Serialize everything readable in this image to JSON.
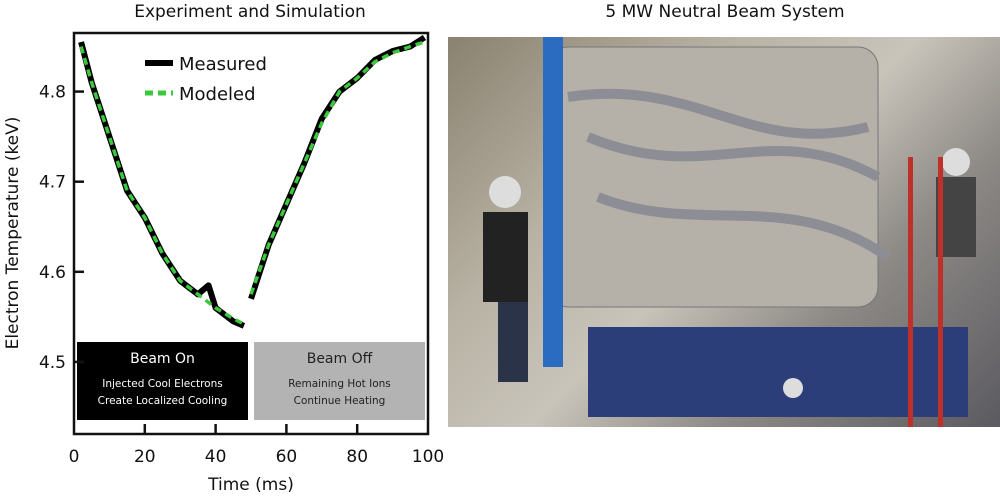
{
  "left_title": "Experiment and Simulation",
  "right_title": "5 MW Neutral Beam System",
  "chart_data": {
    "type": "line",
    "title": "Experiment and Simulation",
    "xlabel": "Time (ms)",
    "ylabel": "Electron Temperature (keV)",
    "xlim": [
      0,
      100
    ],
    "ylim": [
      4.42,
      4.865
    ],
    "xticks": [
      "0",
      "20",
      "40",
      "60",
      "80",
      "100"
    ],
    "yticks": [
      "4.5",
      "4.6",
      "4.7",
      "4.8"
    ],
    "grid": false,
    "legend": "top-center",
    "series": [
      {
        "name": "Measured",
        "color": "#000000",
        "style": "solid",
        "x": [
          2,
          5,
          10,
          15,
          20,
          25,
          30,
          35,
          38,
          40,
          45,
          48,
          50,
          55,
          60,
          65,
          70,
          75,
          80,
          85,
          90,
          95,
          99
        ],
        "y": [
          4.855,
          4.81,
          4.75,
          4.69,
          4.66,
          4.62,
          4.59,
          4.575,
          4.585,
          4.56,
          4.545,
          4.54,
          4.57,
          4.63,
          4.675,
          4.72,
          4.77,
          4.8,
          4.815,
          4.835,
          4.845,
          4.85,
          4.86
        ]
      },
      {
        "name": "Modeled",
        "color": "#3cc83c",
        "style": "dashed",
        "x": [
          2,
          5,
          10,
          15,
          20,
          25,
          30,
          35,
          40,
          45,
          48,
          50,
          55,
          60,
          65,
          70,
          75,
          80,
          85,
          90,
          95,
          99
        ],
        "y": [
          4.85,
          4.81,
          4.75,
          4.69,
          4.66,
          4.62,
          4.59,
          4.575,
          4.56,
          4.548,
          4.542,
          4.575,
          4.63,
          4.675,
          4.72,
          4.765,
          4.8,
          4.815,
          4.833,
          4.843,
          4.85,
          4.855
        ]
      }
    ],
    "annotations": [
      {
        "title": "Beam On",
        "text": [
          "Injected Cool Electrons",
          "Create Localized Cooling"
        ],
        "range": [
          0,
          50
        ],
        "color": "#000000"
      },
      {
        "title": "Beam Off",
        "text": [
          "Remaining Hot Ions",
          "Continue Heating"
        ],
        "range": [
          50,
          100
        ],
        "color": "#b3b3b3"
      }
    ]
  }
}
